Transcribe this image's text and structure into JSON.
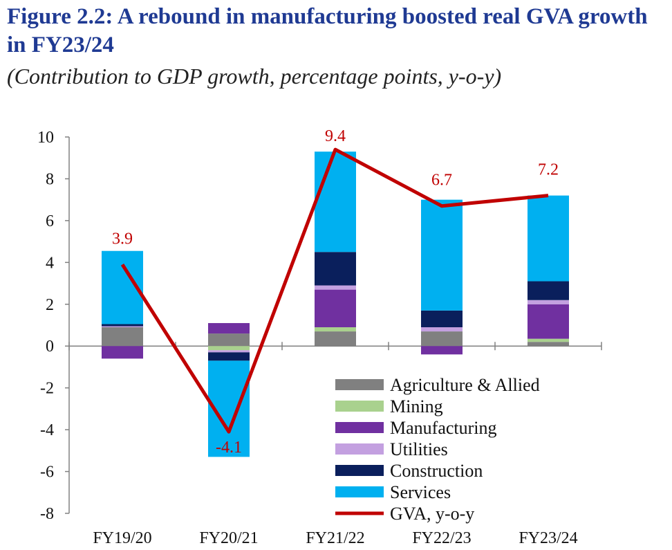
{
  "header": {
    "title": "Figure 2.2: A rebound in manufacturing boosted real GVA growth in FY23/24",
    "subtitle": "(Contribution to GDP growth, percentage points, y-o-y)"
  },
  "chart_data": {
    "type": "bar",
    "stacked": true,
    "title": "Figure 2.2: A rebound in manufacturing boosted real GVA growth in FY23/24",
    "subtitle": "(Contribution to GDP growth, percentage points, y-o-y)",
    "xlabel": "",
    "ylabel": "",
    "ylim": [
      -8,
      10
    ],
    "yticks": [
      10,
      8,
      6,
      4,
      2,
      0,
      -2,
      -4,
      -6,
      -8
    ],
    "categories": [
      "FY19/20",
      "FY20/21",
      "FY21/22",
      "FY22/23",
      "FY23/24"
    ],
    "series": [
      {
        "name": "Agriculture & Allied",
        "color": "#808080",
        "values": [
          0.9,
          0.6,
          0.7,
          0.7,
          0.2
        ]
      },
      {
        "name": "Mining",
        "color": "#a9d18e",
        "values": [
          0.0,
          -0.2,
          0.2,
          0.0,
          0.15
        ]
      },
      {
        "name": "Manufacturing",
        "color": "#7030a0",
        "values": [
          -0.6,
          0.5,
          1.8,
          -0.4,
          1.65
        ]
      },
      {
        "name": "Utilities",
        "color": "#c3a0e0",
        "values": [
          0.05,
          -0.1,
          0.2,
          0.2,
          0.2
        ]
      },
      {
        "name": "Construction",
        "color": "#0a1f5c",
        "values": [
          0.1,
          -0.4,
          1.6,
          0.8,
          0.9
        ]
      },
      {
        "name": "Services",
        "color": "#00b0f0",
        "values": [
          3.5,
          -4.6,
          4.8,
          5.3,
          4.1
        ]
      }
    ],
    "line": {
      "name": "GVA, y-o-y",
      "color": "#c00000",
      "values": [
        3.9,
        -4.1,
        9.4,
        6.7,
        7.2
      ],
      "labels": [
        "3.9",
        "-4.1",
        "9.4",
        "6.7",
        "7.2"
      ]
    },
    "legend_position": "bottom-right",
    "grid": false
  }
}
